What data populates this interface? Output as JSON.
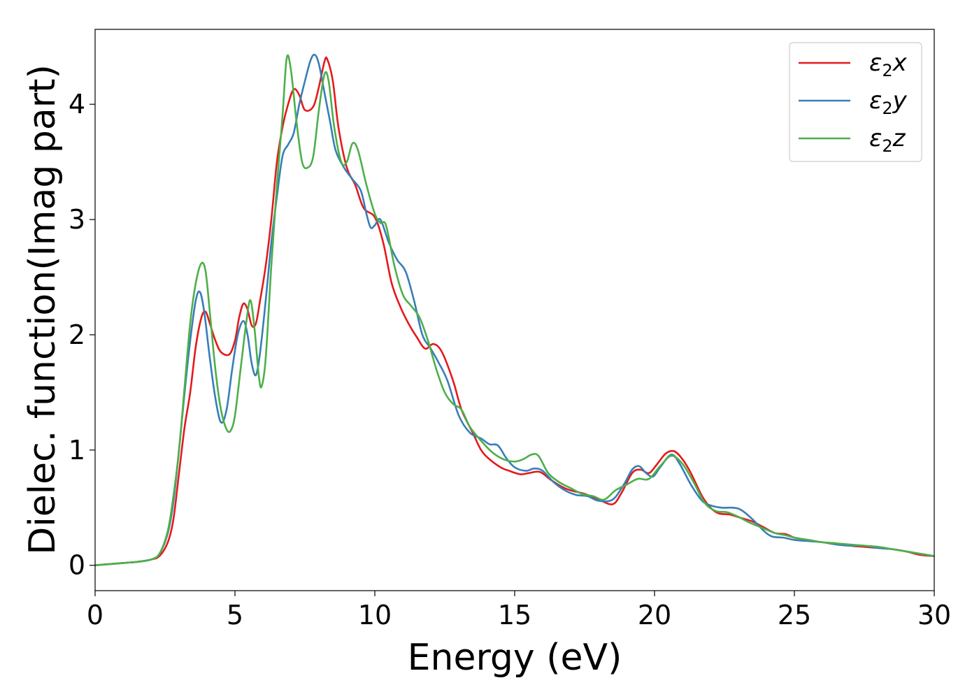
{
  "chart_data": {
    "type": "line",
    "title": "",
    "xlabel": "Energy (eV)",
    "ylabel": "Dielec. function(Imag part)",
    "xlim": [
      0,
      30
    ],
    "ylim": [
      -0.22,
      4.65
    ],
    "xticks": [
      0,
      5,
      10,
      15,
      20,
      25,
      30
    ],
    "yticks": [
      0,
      1,
      2,
      3,
      4
    ],
    "grid": false,
    "legend_position": "top-right",
    "series": [
      {
        "name": "ε₂x",
        "legend_base": "ε",
        "legend_sub": "2",
        "legend_tail": "x",
        "color": "#e41a1c",
        "points": [
          [
            0,
            0
          ],
          [
            1,
            0.02
          ],
          [
            1.5,
            0.03
          ],
          [
            2,
            0.05
          ],
          [
            2.3,
            0.08
          ],
          [
            2.6,
            0.2
          ],
          [
            2.8,
            0.4
          ],
          [
            3.0,
            0.8
          ],
          [
            3.2,
            1.2
          ],
          [
            3.4,
            1.5
          ],
          [
            3.6,
            1.9
          ],
          [
            3.8,
            2.15
          ],
          [
            3.95,
            2.2
          ],
          [
            4.1,
            2.1
          ],
          [
            4.3,
            1.95
          ],
          [
            4.5,
            1.85
          ],
          [
            4.8,
            1.83
          ],
          [
            5.0,
            1.95
          ],
          [
            5.15,
            2.15
          ],
          [
            5.3,
            2.27
          ],
          [
            5.45,
            2.22
          ],
          [
            5.6,
            2.08
          ],
          [
            5.75,
            2.1
          ],
          [
            5.9,
            2.3
          ],
          [
            6.1,
            2.6
          ],
          [
            6.3,
            3.0
          ],
          [
            6.5,
            3.5
          ],
          [
            6.7,
            3.8
          ],
          [
            6.9,
            4.0
          ],
          [
            7.1,
            4.13
          ],
          [
            7.3,
            4.08
          ],
          [
            7.5,
            3.95
          ],
          [
            7.8,
            3.98
          ],
          [
            8.0,
            4.15
          ],
          [
            8.2,
            4.37
          ],
          [
            8.3,
            4.39
          ],
          [
            8.5,
            4.2
          ],
          [
            8.7,
            3.8
          ],
          [
            9.0,
            3.45
          ],
          [
            9.3,
            3.3
          ],
          [
            9.6,
            3.1
          ],
          [
            10.0,
            3.02
          ],
          [
            10.3,
            2.8
          ],
          [
            10.6,
            2.45
          ],
          [
            10.9,
            2.25
          ],
          [
            11.2,
            2.1
          ],
          [
            11.5,
            1.98
          ],
          [
            11.8,
            1.88
          ],
          [
            12.1,
            1.92
          ],
          [
            12.4,
            1.85
          ],
          [
            12.8,
            1.6
          ],
          [
            13.1,
            1.35
          ],
          [
            13.5,
            1.15
          ],
          [
            13.8,
            1.0
          ],
          [
            14.1,
            0.92
          ],
          [
            14.5,
            0.85
          ],
          [
            14.8,
            0.82
          ],
          [
            15.2,
            0.79
          ],
          [
            15.5,
            0.8
          ],
          [
            15.9,
            0.81
          ],
          [
            16.3,
            0.74
          ],
          [
            16.7,
            0.68
          ],
          [
            17.0,
            0.65
          ],
          [
            17.5,
            0.62
          ],
          [
            18.0,
            0.57
          ],
          [
            18.5,
            0.53
          ],
          [
            18.8,
            0.62
          ],
          [
            19.2,
            0.8
          ],
          [
            19.5,
            0.83
          ],
          [
            19.8,
            0.8
          ],
          [
            20.1,
            0.88
          ],
          [
            20.4,
            0.97
          ],
          [
            20.7,
            0.99
          ],
          [
            21.0,
            0.92
          ],
          [
            21.3,
            0.8
          ],
          [
            21.7,
            0.6
          ],
          [
            22.0,
            0.5
          ],
          [
            22.3,
            0.45
          ],
          [
            22.7,
            0.44
          ],
          [
            23.1,
            0.41
          ],
          [
            23.5,
            0.38
          ],
          [
            23.9,
            0.33
          ],
          [
            24.3,
            0.28
          ],
          [
            24.7,
            0.27
          ],
          [
            25.0,
            0.24
          ],
          [
            25.5,
            0.22
          ],
          [
            26.0,
            0.2
          ],
          [
            26.5,
            0.19
          ],
          [
            27.0,
            0.17
          ],
          [
            27.5,
            0.16
          ],
          [
            28.0,
            0.15
          ],
          [
            28.5,
            0.14
          ],
          [
            29.0,
            0.12
          ],
          [
            29.5,
            0.09
          ],
          [
            30.0,
            0.08
          ]
        ]
      },
      {
        "name": "ε₂y",
        "legend_base": "ε",
        "legend_sub": "2",
        "legend_tail": "y",
        "color": "#377eb8",
        "points": [
          [
            0,
            0
          ],
          [
            1,
            0.02
          ],
          [
            1.5,
            0.03
          ],
          [
            2,
            0.05
          ],
          [
            2.3,
            0.1
          ],
          [
            2.6,
            0.28
          ],
          [
            2.8,
            0.55
          ],
          [
            3.0,
            1.0
          ],
          [
            3.2,
            1.5
          ],
          [
            3.4,
            1.95
          ],
          [
            3.6,
            2.3
          ],
          [
            3.75,
            2.37
          ],
          [
            3.9,
            2.2
          ],
          [
            4.1,
            1.8
          ],
          [
            4.3,
            1.45
          ],
          [
            4.5,
            1.24
          ],
          [
            4.7,
            1.35
          ],
          [
            4.9,
            1.7
          ],
          [
            5.1,
            2.0
          ],
          [
            5.3,
            2.12
          ],
          [
            5.45,
            2.0
          ],
          [
            5.6,
            1.75
          ],
          [
            5.75,
            1.65
          ],
          [
            5.9,
            1.85
          ],
          [
            6.1,
            2.3
          ],
          [
            6.3,
            2.8
          ],
          [
            6.5,
            3.2
          ],
          [
            6.7,
            3.55
          ],
          [
            6.9,
            3.65
          ],
          [
            7.1,
            3.75
          ],
          [
            7.3,
            4.0
          ],
          [
            7.5,
            4.2
          ],
          [
            7.7,
            4.38
          ],
          [
            7.85,
            4.43
          ],
          [
            8.0,
            4.35
          ],
          [
            8.2,
            4.1
          ],
          [
            8.4,
            3.85
          ],
          [
            8.6,
            3.6
          ],
          [
            8.9,
            3.45
          ],
          [
            9.2,
            3.35
          ],
          [
            9.5,
            3.25
          ],
          [
            9.7,
            3.05
          ],
          [
            9.85,
            2.93
          ],
          [
            10.0,
            2.95
          ],
          [
            10.2,
            3.0
          ],
          [
            10.5,
            2.8
          ],
          [
            10.8,
            2.65
          ],
          [
            11.1,
            2.55
          ],
          [
            11.4,
            2.3
          ],
          [
            11.7,
            2.0
          ],
          [
            12.0,
            1.88
          ],
          [
            12.3,
            1.75
          ],
          [
            12.6,
            1.6
          ],
          [
            13.0,
            1.3
          ],
          [
            13.4,
            1.15
          ],
          [
            13.8,
            1.1
          ],
          [
            14.1,
            1.05
          ],
          [
            14.4,
            1.04
          ],
          [
            14.7,
            0.93
          ],
          [
            15.0,
            0.85
          ],
          [
            15.4,
            0.82
          ],
          [
            15.7,
            0.84
          ],
          [
            16.0,
            0.82
          ],
          [
            16.4,
            0.72
          ],
          [
            16.8,
            0.65
          ],
          [
            17.2,
            0.61
          ],
          [
            17.6,
            0.6
          ],
          [
            18.0,
            0.56
          ],
          [
            18.5,
            0.57
          ],
          [
            18.9,
            0.7
          ],
          [
            19.2,
            0.83
          ],
          [
            19.45,
            0.86
          ],
          [
            19.7,
            0.8
          ],
          [
            19.95,
            0.77
          ],
          [
            20.2,
            0.85
          ],
          [
            20.6,
            0.96
          ],
          [
            20.9,
            0.88
          ],
          [
            21.3,
            0.7
          ],
          [
            21.7,
            0.56
          ],
          [
            22.0,
            0.52
          ],
          [
            22.4,
            0.5
          ],
          [
            22.8,
            0.5
          ],
          [
            23.1,
            0.48
          ],
          [
            23.5,
            0.4
          ],
          [
            23.9,
            0.3
          ],
          [
            24.2,
            0.25
          ],
          [
            24.6,
            0.24
          ],
          [
            25.0,
            0.22
          ],
          [
            25.5,
            0.21
          ],
          [
            26.0,
            0.2
          ],
          [
            26.5,
            0.18
          ],
          [
            27.0,
            0.17
          ],
          [
            27.5,
            0.17
          ],
          [
            28.0,
            0.15
          ],
          [
            28.5,
            0.14
          ],
          [
            29.0,
            0.12
          ],
          [
            29.5,
            0.1
          ],
          [
            30.0,
            0.08
          ]
        ]
      },
      {
        "name": "ε₂z",
        "legend_base": "ε",
        "legend_sub": "2",
        "legend_tail": "z",
        "color": "#4daf4a",
        "points": [
          [
            0,
            0
          ],
          [
            1,
            0.02
          ],
          [
            1.5,
            0.03
          ],
          [
            2,
            0.05
          ],
          [
            2.3,
            0.1
          ],
          [
            2.6,
            0.3
          ],
          [
            2.8,
            0.6
          ],
          [
            3.0,
            1.0
          ],
          [
            3.2,
            1.55
          ],
          [
            3.4,
            2.1
          ],
          [
            3.6,
            2.45
          ],
          [
            3.8,
            2.62
          ],
          [
            3.95,
            2.55
          ],
          [
            4.1,
            2.2
          ],
          [
            4.3,
            1.7
          ],
          [
            4.5,
            1.35
          ],
          [
            4.7,
            1.18
          ],
          [
            4.85,
            1.17
          ],
          [
            5.0,
            1.3
          ],
          [
            5.2,
            1.7
          ],
          [
            5.4,
            2.1
          ],
          [
            5.55,
            2.3
          ],
          [
            5.7,
            2.05
          ],
          [
            5.85,
            1.65
          ],
          [
            5.95,
            1.55
          ],
          [
            6.1,
            1.8
          ],
          [
            6.3,
            2.6
          ],
          [
            6.5,
            3.3
          ],
          [
            6.7,
            3.9
          ],
          [
            6.85,
            4.4
          ],
          [
            7.0,
            4.3
          ],
          [
            7.2,
            3.85
          ],
          [
            7.4,
            3.5
          ],
          [
            7.6,
            3.45
          ],
          [
            7.8,
            3.55
          ],
          [
            8.0,
            3.95
          ],
          [
            8.2,
            4.26
          ],
          [
            8.35,
            4.2
          ],
          [
            8.55,
            3.8
          ],
          [
            8.8,
            3.5
          ],
          [
            9.0,
            3.5
          ],
          [
            9.2,
            3.66
          ],
          [
            9.4,
            3.6
          ],
          [
            9.7,
            3.3
          ],
          [
            10.0,
            3.05
          ],
          [
            10.2,
            2.97
          ],
          [
            10.4,
            2.95
          ],
          [
            10.7,
            2.6
          ],
          [
            11.0,
            2.35
          ],
          [
            11.3,
            2.25
          ],
          [
            11.6,
            2.15
          ],
          [
            11.9,
            1.95
          ],
          [
            12.2,
            1.7
          ],
          [
            12.5,
            1.5
          ],
          [
            12.8,
            1.4
          ],
          [
            13.1,
            1.35
          ],
          [
            13.4,
            1.2
          ],
          [
            13.8,
            1.08
          ],
          [
            14.2,
            0.98
          ],
          [
            14.6,
            0.92
          ],
          [
            15.0,
            0.9
          ],
          [
            15.3,
            0.92
          ],
          [
            15.6,
            0.96
          ],
          [
            15.85,
            0.95
          ],
          [
            16.2,
            0.8
          ],
          [
            16.6,
            0.72
          ],
          [
            17.0,
            0.67
          ],
          [
            17.4,
            0.62
          ],
          [
            17.8,
            0.6
          ],
          [
            18.2,
            0.57
          ],
          [
            18.6,
            0.65
          ],
          [
            19.0,
            0.7
          ],
          [
            19.4,
            0.75
          ],
          [
            19.8,
            0.75
          ],
          [
            20.2,
            0.86
          ],
          [
            20.6,
            0.95
          ],
          [
            21.0,
            0.88
          ],
          [
            21.4,
            0.72
          ],
          [
            21.8,
            0.54
          ],
          [
            22.2,
            0.47
          ],
          [
            22.6,
            0.46
          ],
          [
            23.0,
            0.42
          ],
          [
            23.4,
            0.37
          ],
          [
            23.8,
            0.33
          ],
          [
            24.3,
            0.28
          ],
          [
            24.7,
            0.26
          ],
          [
            25.0,
            0.24
          ],
          [
            25.5,
            0.22
          ],
          [
            26.0,
            0.2
          ],
          [
            26.5,
            0.19
          ],
          [
            27.0,
            0.18
          ],
          [
            27.5,
            0.17
          ],
          [
            28.0,
            0.16
          ],
          [
            28.5,
            0.14
          ],
          [
            29.0,
            0.12
          ],
          [
            29.5,
            0.1
          ],
          [
            30.0,
            0.08
          ]
        ]
      }
    ]
  }
}
